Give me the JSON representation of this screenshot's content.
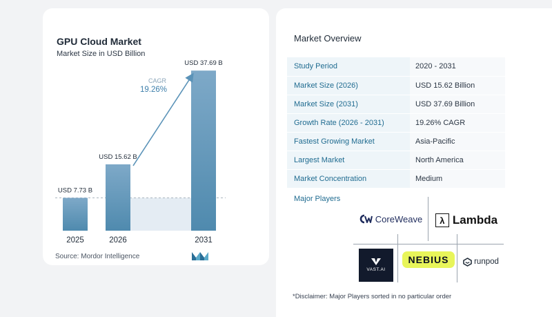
{
  "chart": {
    "title": "GPU Cloud Market",
    "subtitle": "Market Size in USD Billion",
    "source": "Source:  Mordor Intelligence",
    "cagr_label": "CAGR",
    "cagr_value": "19.26%"
  },
  "chart_data": {
    "type": "bar",
    "categories": [
      "2025",
      "2026",
      "2031"
    ],
    "values": [
      7.73,
      15.62,
      37.69
    ],
    "data_labels": [
      "USD 7.73 B",
      "USD 15.62 B",
      "USD 37.69 B"
    ],
    "title": "GPU Cloud Market",
    "subtitle": "Market Size in USD Billion",
    "xlabel": "",
    "ylabel": "",
    "ylim": [
      0,
      40
    ],
    "annotation": "CAGR 19.26%",
    "reference_line": 7.73,
    "colors": {
      "bar_top": "#7ea9c8",
      "bar_bottom": "#4f8aae",
      "fill": "#e4ecf3",
      "arrow": "#5b93b8"
    }
  },
  "overview": {
    "title": "Market Overview",
    "rows": [
      {
        "label": "Study Period",
        "value": "2020 - 2031"
      },
      {
        "label": "Market Size (2026)",
        "value": "USD 15.62 Billion"
      },
      {
        "label": "Market Size (2031)",
        "value": "USD 37.69 Billion"
      },
      {
        "label": "Growth Rate (2026 - 2031)",
        "value": "19.26% CAGR"
      },
      {
        "label": "Fastest Growing Market",
        "value": "Asia-Pacific"
      },
      {
        "label": "Largest Market",
        "value": "North America"
      },
      {
        "label": "Market Concentration",
        "value": "Medium"
      }
    ]
  },
  "players": {
    "title": "Major Players",
    "logos": {
      "coreweave": "CoreWeave",
      "lambda": "Lambda",
      "vast": "VAST.AI",
      "nebius": "NEBIUS",
      "runpod": "runpod"
    }
  },
  "disclaimer": "*Disclaimer: Major Players sorted in no particular order",
  "colors": {
    "accent": "#1f6b90",
    "key_bg": "#eef5f9",
    "nebius_bg": "#e8f55a"
  }
}
